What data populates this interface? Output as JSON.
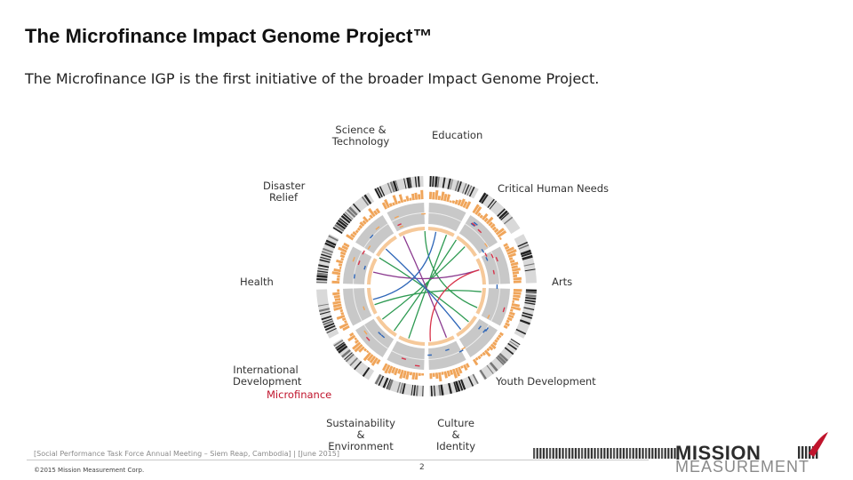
{
  "slide": {
    "title": "The Microfinance Impact Genome Project™",
    "subtitle": "The Microfinance IGP is the first initiative of the broader Impact Genome Project."
  },
  "diagram": {
    "labels": {
      "science": "Science &\nTechnology",
      "education": "Education",
      "disaster": "Disaster\nRelief",
      "critical": "Critical Human Needs",
      "health": "Health",
      "arts": "Arts",
      "intl": "International\nDevelopment",
      "microfinance": "Microfinance",
      "youth": "Youth Development",
      "sustainability": "Sustainability &\nEnvironment",
      "culture": "Culture &\nIdentity"
    },
    "colors": {
      "orange": "#f0a55a",
      "gray": "#c8c8c8",
      "green": "#2e9a52",
      "blue": "#2e66b8",
      "purple": "#8b3a8f",
      "red": "#d8334a",
      "black": "#222222"
    }
  },
  "footer": {
    "event": "[Social Performance Task Force Annual Meeting – Siem Reap, Cambodia] | [June 2015]",
    "copyright": "©2015 Mission Measurement Corp.",
    "page": "2"
  },
  "logo": {
    "line1": "MISSION",
    "line2": "MEASUREMENT",
    "accent": "#c0142c"
  }
}
